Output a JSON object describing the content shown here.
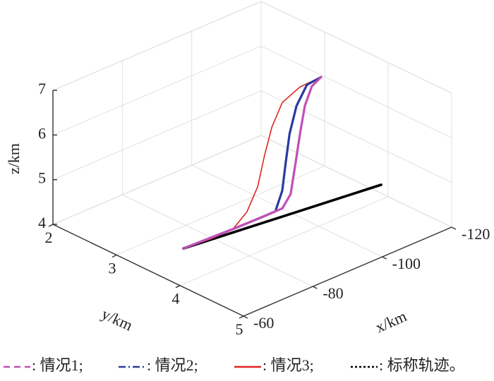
{
  "chart_data": {
    "type": "line3d",
    "xlabel": "x/km",
    "ylabel": "y/km",
    "zlabel": "z/km",
    "xlim": [
      -60,
      -120
    ],
    "xticks": [
      -60,
      -80,
      -100,
      -120
    ],
    "ylim": [
      2,
      5
    ],
    "yticks": [
      2,
      3,
      4,
      5
    ],
    "zlim": [
      4,
      7
    ],
    "zticks": [
      4,
      5,
      6,
      7
    ],
    "grid": true,
    "series": [
      {
        "name": ": 情况1;",
        "color": "#c24fb6",
        "dash": "dashed",
        "linewidth": 3.2,
        "x": [
          -65.2,
          -79.5,
          -89.6,
          -93.7,
          -96.1,
          -97.4,
          -98.8,
          -100.2,
          -102.2,
          -104.9
        ],
        "y": [
          3.77,
          3.77,
          3.77,
          3.77,
          3.77,
          3.77,
          3.77,
          3.77,
          3.77,
          3.77
        ],
        "z": [
          4.5,
          4.46,
          4.45,
          4.45,
          4.69,
          5.28,
          5.95,
          6.53,
          6.9,
          7.02
        ]
      },
      {
        "name": ": 情况2;",
        "color": "#2a3a9e",
        "dash": "dashdot",
        "linewidth": 3.2,
        "x": [
          -65.2,
          -79.5,
          -87.6,
          -91.7,
          -93.7,
          -94.7,
          -95.8,
          -97.8,
          -100.8,
          -104.9
        ],
        "y": [
          3.77,
          3.77,
          3.77,
          3.77,
          3.77,
          3.77,
          3.77,
          3.77,
          3.77,
          3.77
        ],
        "z": [
          4.5,
          4.46,
          4.45,
          4.45,
          4.85,
          5.45,
          6.05,
          6.61,
          6.98,
          7.02
        ]
      },
      {
        "name": ": 情况3;",
        "color": "#e02424",
        "dash": "solid",
        "linewidth": 1.6,
        "x": [
          -65.2,
          -73.4,
          -79.5,
          -83.5,
          -86.6,
          -88.6,
          -90.7,
          -93.7,
          -98.8,
          -104.9
        ],
        "y": [
          3.77,
          3.77,
          3.77,
          3.77,
          3.77,
          3.77,
          3.77,
          3.77,
          3.77,
          3.77
        ],
        "z": [
          4.5,
          4.45,
          4.46,
          4.71,
          5.17,
          5.81,
          6.37,
          6.82,
          7.0,
          7.02
        ]
      },
      {
        "name": ": 标称轨迹。",
        "color": "#000000",
        "dash": "dotted",
        "linewidth": 3.6,
        "x": [
          -65.2,
          -115.6
        ],
        "y": [
          3.77,
          4.13
        ],
        "z": [
          4.5,
          4.5
        ]
      }
    ]
  }
}
